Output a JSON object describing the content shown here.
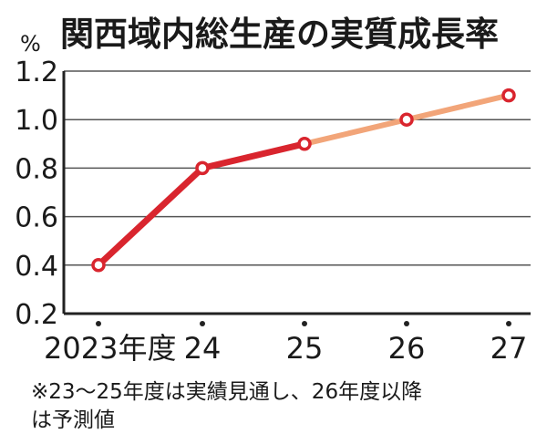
{
  "chart_data": {
    "type": "line",
    "title": "関西域内総生産の実質成長率",
    "unit": "%",
    "categories": [
      "2023年度",
      "24",
      "25",
      "26",
      "27"
    ],
    "series": [
      {
        "values": [
          0.4,
          0.8,
          0.9,
          1.0,
          1.1
        ]
      }
    ],
    "actual_through_index": 2,
    "ylim": [
      0.2,
      1.2
    ],
    "yticks": [
      "0.2",
      "0.4",
      "0.6",
      "0.8",
      "1.0",
      "1.2"
    ],
    "grid": true,
    "colors": {
      "actual": "#d9252e",
      "forecast": "#f2a579",
      "grid": "#555555"
    }
  },
  "note": {
    "line1": "※23～25年度は実績見通し、26年度以降",
    "line2": "は予測値"
  }
}
